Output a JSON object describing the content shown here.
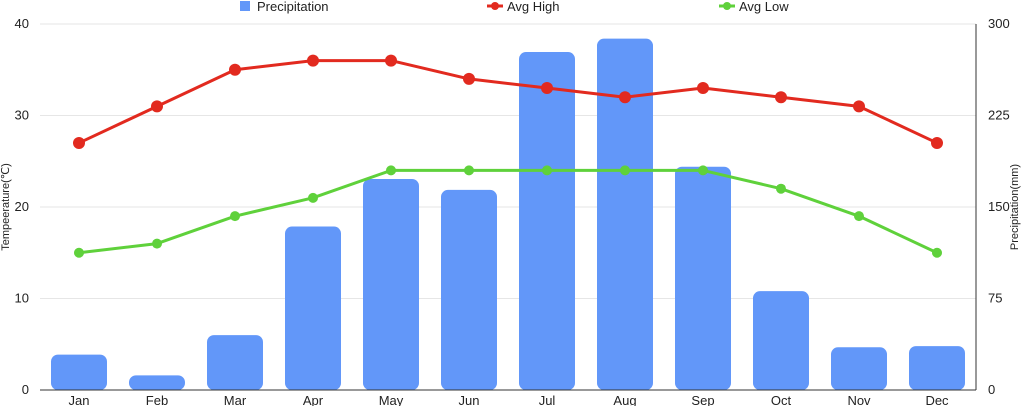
{
  "chart_data": {
    "type": "bar",
    "categories": [
      "Jan",
      "Feb",
      "Mar",
      "Apr",
      "May",
      "Jun",
      "Jul",
      "Aug",
      "Sep",
      "Oct",
      "Nov",
      "Dec"
    ],
    "series": [
      {
        "name": "Precipitation",
        "type": "bar",
        "axis": "right",
        "color": "#6297f9",
        "values": [
          29,
          12,
          45,
          134,
          173,
          164,
          277,
          288,
          183,
          81,
          35,
          36
        ]
      },
      {
        "name": "Avg High",
        "type": "line",
        "axis": "left",
        "color": "#e22a1f",
        "values": [
          27,
          31,
          35,
          36,
          36,
          34,
          33,
          32,
          33,
          32,
          31,
          27
        ]
      },
      {
        "name": "Avg Low",
        "type": "line",
        "axis": "left",
        "color": "#5fd13b",
        "values": [
          15,
          16,
          19,
          21,
          24,
          24,
          24,
          24,
          24,
          22,
          19,
          15
        ]
      }
    ],
    "ylabel": "Tempeerature(℃)",
    "y2label": "Precipitation(mm)",
    "ylim": [
      0,
      40
    ],
    "y2lim": [
      0,
      300
    ],
    "yticks": [
      "0",
      "10",
      "20",
      "30",
      "40"
    ],
    "y2ticks": [
      "0",
      "75",
      "150",
      "225",
      "300"
    ],
    "grid": true,
    "legend_position": "top-center"
  }
}
